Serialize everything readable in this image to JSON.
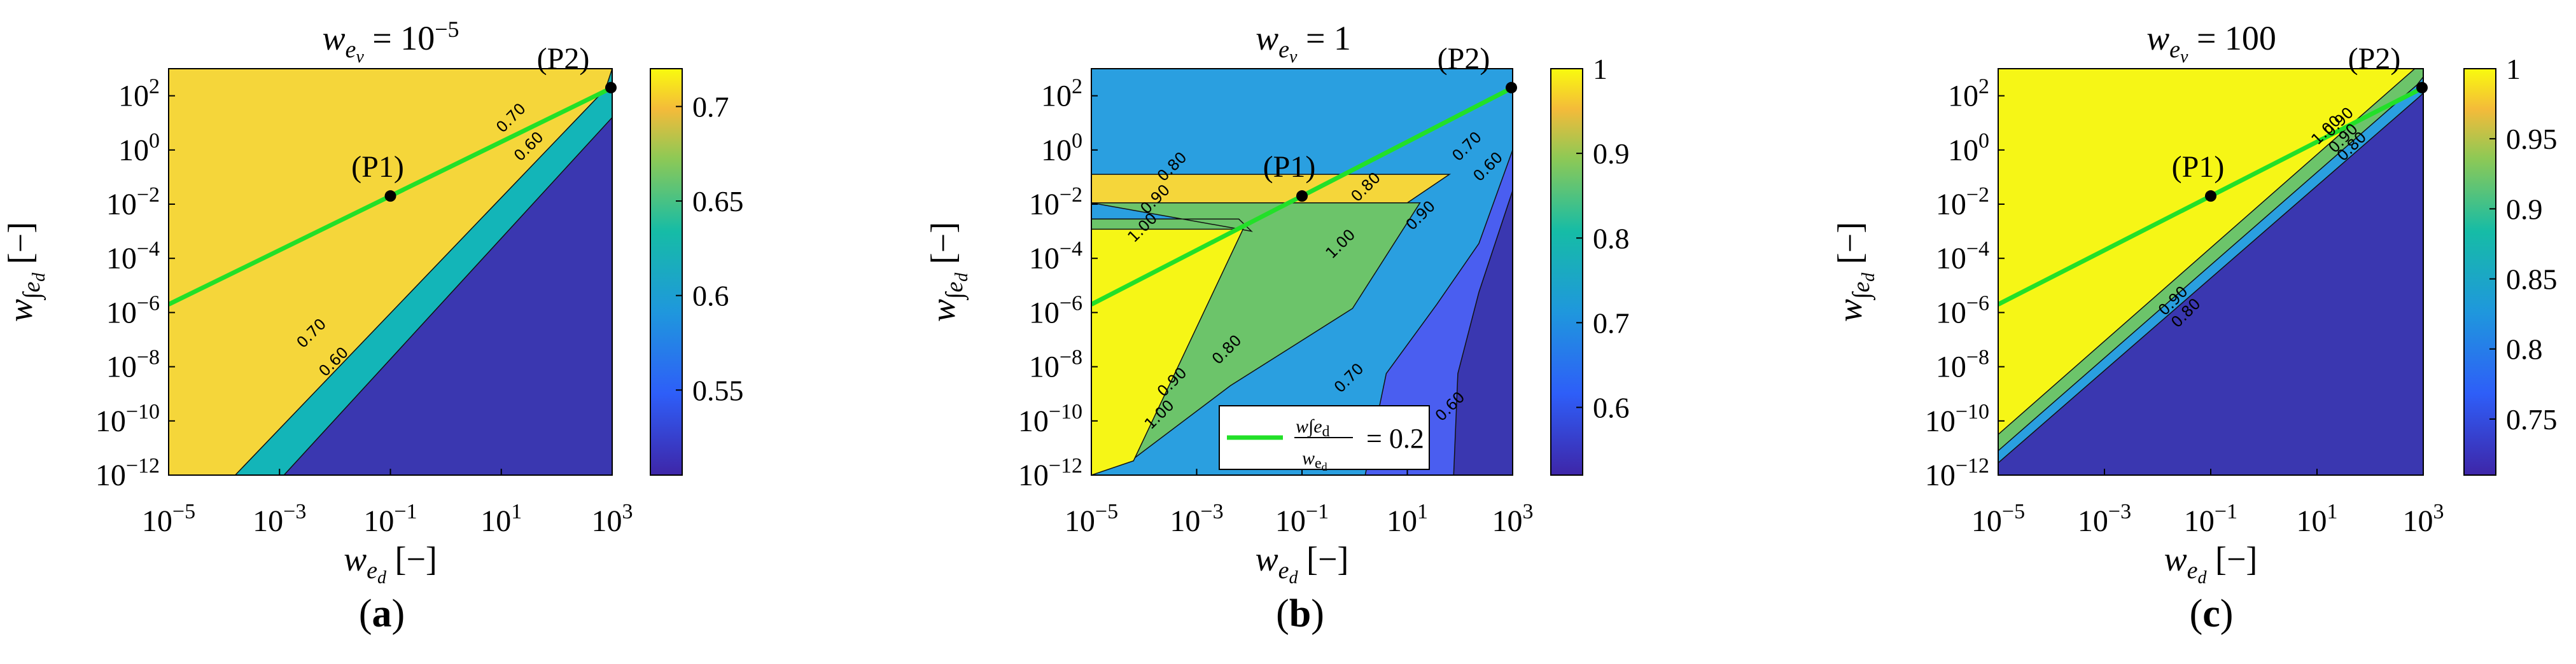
{
  "colors": {
    "line": "#22e028",
    "point": "#000000",
    "c_yellow": "#f5d63a",
    "c_yellow_bright": "#f6f616",
    "c_orange": "#e8b23a",
    "c_teal": "#13b5b8",
    "c_lightblue": "#2a9fe0",
    "c_green": "#6cc46a",
    "c_blue": "#4a5ef0",
    "c_indigo": "#3a37b0"
  },
  "chart_data": [
    {
      "type": "contour",
      "panel_label": "(a)",
      "title": "w_{e_v} = 10^{-5}",
      "xlabel": "w_{e_d} [−]",
      "ylabel": "w_{∫e_d} [−]",
      "x_scale": "log",
      "y_scale": "log",
      "xlim": [
        1e-05,
        1000
      ],
      "ylim": [
        1e-12,
        1000
      ],
      "xticks": [
        "10⁻⁵",
        "10⁻³",
        "10⁻¹",
        "10¹",
        "10³"
      ],
      "yticks": [
        "10⁻¹²",
        "10⁻¹⁰",
        "10⁻⁸",
        "10⁻⁶",
        "10⁻⁴",
        "10⁻²",
        "10⁰",
        "10²"
      ],
      "contour_labels": [
        "0.70",
        "0.60",
        "0.70",
        "0.60"
      ],
      "colorbar": {
        "min": 0.505,
        "max": 0.72,
        "ticks": [
          "0.55",
          "0.6",
          "0.65",
          "0.7"
        ]
      },
      "line": {
        "ratio": 0.2,
        "x": [
          1e-05,
          1000
        ],
        "y": [
          2e-06,
          200
        ]
      },
      "points": [
        {
          "label": "(P1)",
          "x": 0.1,
          "y": 0.02
        },
        {
          "label": "(P2)",
          "x": 1000,
          "y": 200
        }
      ]
    },
    {
      "type": "contour",
      "panel_label": "(b)",
      "title": "w_{e_v} = 1",
      "xlabel": "w_{e_d} [−]",
      "ylabel": "w_{∫e_d} [−]",
      "x_scale": "log",
      "y_scale": "log",
      "xlim": [
        1e-05,
        1000
      ],
      "ylim": [
        1e-12,
        1000
      ],
      "xticks": [
        "10⁻⁵",
        "10⁻³",
        "10⁻¹",
        "10¹",
        "10³"
      ],
      "yticks": [
        "10⁻¹²",
        "10⁻¹⁰",
        "10⁻⁸",
        "10⁻⁶",
        "10⁻⁴",
        "10⁻²",
        "10⁰",
        "10²"
      ],
      "contour_labels": [
        "0.80",
        "0.90",
        "1.00",
        "0.80",
        "0.90",
        "0.70",
        "0.60",
        "1.00",
        "0.80",
        "0.90",
        "1.00",
        "0.70",
        "0.60"
      ],
      "colorbar": {
        "min": 0.52,
        "max": 1.0,
        "ticks": [
          "0.6",
          "0.7",
          "0.8",
          "0.9",
          "1"
        ]
      },
      "line": {
        "ratio": 0.2,
        "x": [
          1e-05,
          1000
        ],
        "y": [
          2e-06,
          200
        ]
      },
      "legend": {
        "text": "w∫e_d / w_{e_d} = 0.2",
        "location": "lower-center"
      },
      "points": [
        {
          "label": "(P1)",
          "x": 0.1,
          "y": 0.02
        },
        {
          "label": "(P2)",
          "x": 1000,
          "y": 200
        }
      ]
    },
    {
      "type": "contour",
      "panel_label": "(c)",
      "title": "w_{e_v} = 100",
      "xlabel": "w_{e_d} [−]",
      "ylabel": "w_{∫e_d} [−]",
      "x_scale": "log",
      "y_scale": "log",
      "xlim": [
        1e-05,
        1000
      ],
      "ylim": [
        1e-12,
        1000
      ],
      "xticks": [
        "10⁻⁵",
        "10⁻³",
        "10⁻¹",
        "10¹",
        "10³"
      ],
      "yticks": [
        "10⁻¹²",
        "10⁻¹⁰",
        "10⁻⁸",
        "10⁻⁶",
        "10⁻⁴",
        "10⁻²",
        "10⁰",
        "10²"
      ],
      "contour_labels": [
        "1.00",
        "0.90",
        "0.80",
        "0.90",
        "0.90",
        "0.80"
      ],
      "colorbar": {
        "min": 0.71,
        "max": 1.0,
        "ticks": [
          "0.75",
          "0.8",
          "0.85",
          "0.9",
          "0.95",
          "1"
        ]
      },
      "line": {
        "ratio": 0.2,
        "x": [
          1e-05,
          1000
        ],
        "y": [
          2e-06,
          200
        ]
      },
      "points": [
        {
          "label": "(P1)",
          "x": 0.1,
          "y": 0.02
        },
        {
          "label": "(P2)",
          "x": 1000,
          "y": 200
        }
      ]
    }
  ]
}
